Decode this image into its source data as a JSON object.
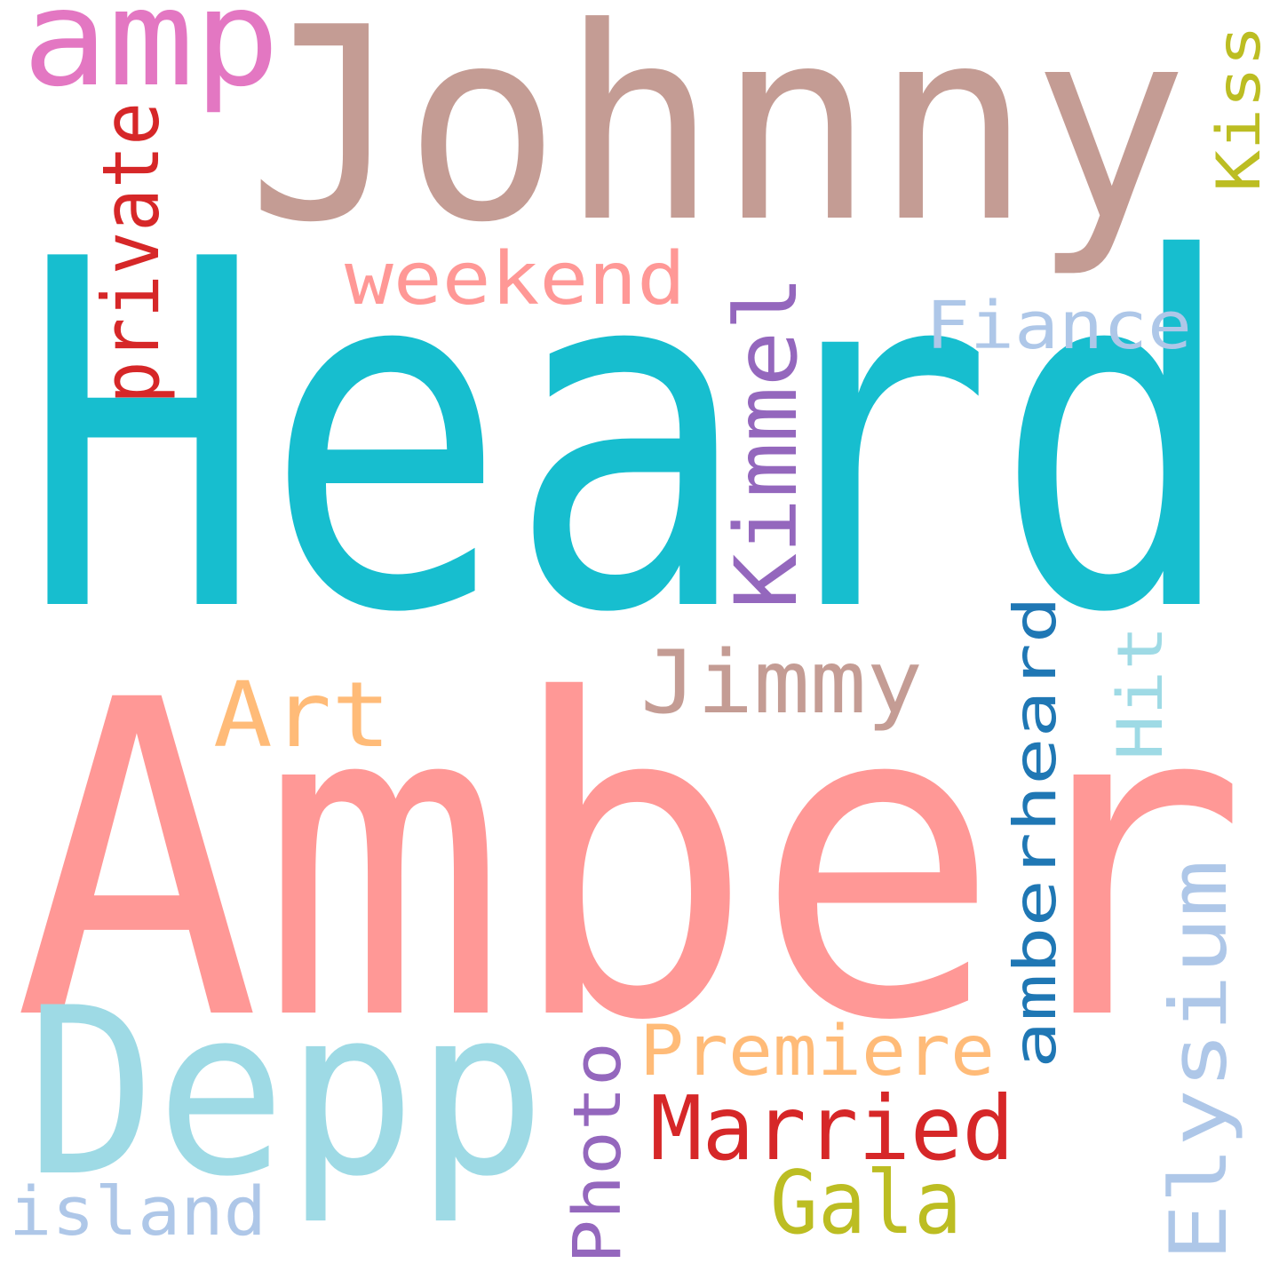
{
  "words": [
    {
      "id": "heard",
      "text": "Heard",
      "color": "#17becf"
    },
    {
      "id": "amber",
      "text": "Amber",
      "color": "#ff9896"
    },
    {
      "id": "johnny",
      "text": "Johnny",
      "color": "#c49c94"
    },
    {
      "id": "depp",
      "text": "Depp",
      "color": "#9edae5"
    },
    {
      "id": "amp",
      "text": "amp",
      "color": "#e377c2"
    },
    {
      "id": "private",
      "text": "private",
      "color": "#d62728"
    },
    {
      "id": "weekend",
      "text": "weekend",
      "color": "#ff9896"
    },
    {
      "id": "kimmel",
      "text": "Kimmel",
      "color": "#9467bd"
    },
    {
      "id": "fiance",
      "text": "Fiance",
      "color": "#aec7e8"
    },
    {
      "id": "kiss",
      "text": "Kiss",
      "color": "#bcbd22"
    },
    {
      "id": "jimmy",
      "text": "Jimmy",
      "color": "#c49c94"
    },
    {
      "id": "art",
      "text": "Art",
      "color": "#ffbb78"
    },
    {
      "id": "amberheard",
      "text": "amberheard",
      "color": "#1f77b4"
    },
    {
      "id": "hit",
      "text": "Hit",
      "color": "#9edae5"
    },
    {
      "id": "elysium",
      "text": "Elysium",
      "color": "#aec7e8"
    },
    {
      "id": "premiere",
      "text": "Premiere",
      "color": "#ffbb78"
    },
    {
      "id": "married",
      "text": "Married",
      "color": "#d62728"
    },
    {
      "id": "photo",
      "text": "Photo",
      "color": "#9467bd"
    },
    {
      "id": "gala",
      "text": "Gala",
      "color": "#bcbd22"
    },
    {
      "id": "island",
      "text": "island",
      "color": "#aec7e8"
    }
  ]
}
